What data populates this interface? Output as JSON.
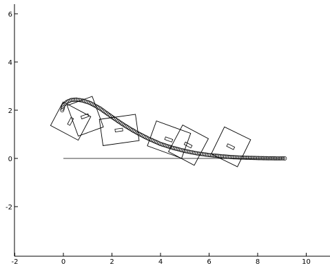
{
  "chart_data": {
    "type": "scatter",
    "title": "",
    "xlabel": "",
    "ylabel": "",
    "xlim": [
      -2,
      11
    ],
    "ylim": [
      -3.8,
      6.5
    ],
    "grid": false,
    "legend": "none",
    "x_ticks": [
      "-2",
      "0",
      "2",
      "4",
      "6",
      "8",
      "10"
    ],
    "y_ticks": [
      "-2",
      "0",
      "2",
      "4",
      "6"
    ],
    "x_tick_values": [
      -2,
      0,
      2,
      4,
      6,
      8,
      10
    ],
    "y_tick_values": [
      -2,
      0,
      2,
      4,
      6
    ],
    "reference_line": {
      "x": [
        0,
        9.1
      ],
      "y": [
        0,
        0
      ]
    },
    "path_control": [
      [
        -0.05,
        2.0
      ],
      [
        0.0,
        2.2
      ],
      [
        0.15,
        2.35
      ],
      [
        0.35,
        2.43
      ],
      [
        0.55,
        2.44
      ],
      [
        0.8,
        2.4
      ],
      [
        1.1,
        2.3
      ],
      [
        1.5,
        2.08
      ],
      [
        2.0,
        1.72
      ],
      [
        2.5,
        1.38
      ],
      [
        3.0,
        1.08
      ],
      [
        3.5,
        0.82
      ],
      [
        4.0,
        0.6
      ],
      [
        4.5,
        0.44
      ],
      [
        5.0,
        0.31
      ],
      [
        5.5,
        0.21
      ],
      [
        6.0,
        0.14
      ],
      [
        6.5,
        0.09
      ],
      [
        7.0,
        0.05
      ],
      [
        7.5,
        0.03
      ],
      [
        8.0,
        0.015
      ],
      [
        8.5,
        0.005
      ],
      [
        9.15,
        0.0
      ]
    ],
    "markers": {
      "symbol": "circle",
      "color": "#000000"
    },
    "robot_frames": [
      {
        "cx": 0.3,
        "cy": 1.55,
        "angle_deg": 62,
        "w": 1.1,
        "h": 1.3
      },
      {
        "cx": 0.9,
        "cy": 1.75,
        "angle_deg": 20,
        "w": 1.1,
        "h": 1.35
      },
      {
        "cx": 2.3,
        "cy": 1.18,
        "angle_deg": 8,
        "w": 1.5,
        "h": 1.1
      },
      {
        "cx": 4.35,
        "cy": 0.78,
        "angle_deg": -20,
        "w": 1.5,
        "h": 1.1
      },
      {
        "cx": 5.15,
        "cy": 0.55,
        "angle_deg": -28,
        "w": 1.2,
        "h": 1.25
      },
      {
        "cx": 6.9,
        "cy": 0.48,
        "angle_deg": -26,
        "w": 1.2,
        "h": 1.25
      }
    ],
    "colors": {
      "axis": "#000000",
      "marker": "#000000",
      "frame": "#000000"
    }
  }
}
